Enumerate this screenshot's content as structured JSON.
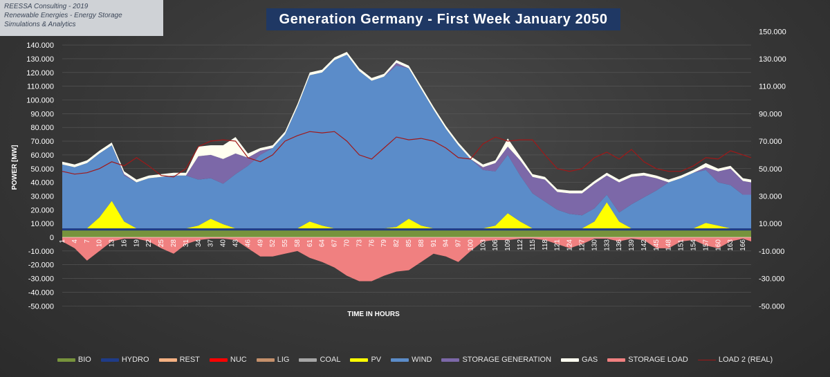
{
  "watermark": {
    "line1": "REESSA Consulting - 2019",
    "line2": "Renewable Energies  - Energy Storage",
    "line3": "Simulations & Analytics"
  },
  "legend": [
    {
      "label": "BIO",
      "color": "#77933c"
    },
    {
      "label": "HYDRO",
      "color": "#1f3c88"
    },
    {
      "label": "REST",
      "color": "#f4b183"
    },
    {
      "label": "NUC",
      "color": "#ff0000"
    },
    {
      "label": "LIG",
      "color": "#c5906b"
    },
    {
      "label": "COAL",
      "color": "#a6a6a6"
    },
    {
      "label": "PV",
      "color": "#ffff00"
    },
    {
      "label": "WIND",
      "color": "#5b8cc9"
    },
    {
      "label": "STORAGE GENERATION",
      "color": "#7c68a8"
    },
    {
      "label": "GAS",
      "color": "#fffff0"
    },
    {
      "label": "STORAGE LOAD",
      "color": "#f08080"
    },
    {
      "label": "LOAD 2 (REAL)",
      "color": "#a01818",
      "style": "line"
    }
  ],
  "chart_data": {
    "type": "area",
    "title": "Generation Germany - First Week January 2050",
    "xlabel": "TIME IN HOURS",
    "ylabel": "POWER [MW]",
    "ylim": [
      -50000,
      140000
    ],
    "y2lim": [
      -50000,
      150000
    ],
    "y_ticks": [
      "-50.000",
      "-40.000",
      "-30.000",
      "-20.000",
      "-10.000",
      "0",
      "10.000",
      "20.000",
      "30.000",
      "40.000",
      "50.000",
      "60.000",
      "70.000",
      "80.000",
      "90.000",
      "100.000",
      "110.000",
      "120.000",
      "130.000",
      "140.000"
    ],
    "y2_ticks": [
      "-50.000",
      "-30.000",
      "-10.000",
      "10.000",
      "30.000",
      "50.000",
      "70.000",
      "90.000",
      "110.000",
      "130.000",
      "150.000"
    ],
    "x_ticks": [
      "1",
      "4",
      "7",
      "10",
      "13",
      "16",
      "19",
      "22",
      "25",
      "28",
      "31",
      "34",
      "37",
      "40",
      "43",
      "46",
      "49",
      "52",
      "55",
      "58",
      "61",
      "64",
      "67",
      "70",
      "73",
      "76",
      "79",
      "82",
      "85",
      "88",
      "91",
      "94",
      "97",
      "100",
      "103",
      "106",
      "109",
      "112",
      "115",
      "118",
      "121",
      "124",
      "127",
      "130",
      "133",
      "136",
      "139",
      "142",
      "145",
      "148",
      "151",
      "154",
      "157",
      "160",
      "163",
      "166"
    ],
    "hours": [
      1,
      4,
      7,
      10,
      13,
      16,
      19,
      22,
      25,
      28,
      31,
      34,
      37,
      40,
      43,
      46,
      49,
      52,
      55,
      58,
      61,
      64,
      67,
      70,
      73,
      76,
      79,
      82,
      85,
      88,
      91,
      94,
      97,
      100,
      103,
      106,
      109,
      112,
      115,
      118,
      121,
      124,
      127,
      130,
      133,
      136,
      139,
      142,
      145,
      148,
      151,
      154,
      157,
      160,
      163,
      166,
      168
    ],
    "series": [
      {
        "name": "BIO",
        "values": [
          5000,
          5000,
          5000,
          5000,
          5000,
          5000,
          5000,
          5000,
          5000,
          5000,
          5000,
          5000,
          5000,
          5000,
          5000,
          5000,
          5000,
          5000,
          5000,
          5000,
          5000,
          5000,
          5000,
          5000,
          5000,
          5000,
          5000,
          5000,
          5000,
          5000,
          5000,
          5000,
          5000,
          5000,
          5000,
          5000,
          5000,
          5000,
          5000,
          5000,
          5000,
          5000,
          5000,
          5000,
          5000,
          5000,
          5000,
          5000,
          5000,
          5000,
          5000,
          5000,
          5000,
          5000,
          5000,
          5000,
          5000
        ]
      },
      {
        "name": "HYDRO",
        "values": [
          1500,
          1500,
          1500,
          1500,
          1500,
          1500,
          1500,
          1500,
          1500,
          1500,
          1500,
          1500,
          1500,
          1500,
          1500,
          1500,
          1500,
          1500,
          1500,
          1500,
          1500,
          1500,
          1500,
          1500,
          1500,
          1500,
          1500,
          1500,
          1500,
          1500,
          1500,
          1500,
          1500,
          1500,
          1500,
          1500,
          1500,
          1500,
          1500,
          1500,
          1500,
          1500,
          1500,
          1500,
          1500,
          1500,
          1500,
          1500,
          1500,
          1500,
          1500,
          1500,
          1500,
          1500,
          1500,
          1500,
          1500
        ]
      },
      {
        "name": "PV",
        "values": [
          0,
          0,
          0,
          8000,
          20000,
          5000,
          0,
          0,
          0,
          0,
          0,
          2000,
          7000,
          3000,
          0,
          0,
          0,
          0,
          0,
          0,
          5000,
          2000,
          0,
          0,
          0,
          0,
          0,
          1000,
          7000,
          2000,
          0,
          0,
          0,
          0,
          0,
          2000,
          11000,
          5000,
          0,
          0,
          0,
          0,
          0,
          5000,
          19000,
          5000,
          0,
          0,
          0,
          0,
          0,
          0,
          4000,
          2000,
          0,
          0,
          0
        ]
      },
      {
        "name": "WIND",
        "values": [
          46500,
          44500,
          47500,
          46500,
          40500,
          33500,
          33500,
          36500,
          37500,
          38500,
          38500,
          33500,
          29500,
          29500,
          39500,
          45500,
          53500,
          58500,
          68500,
          88500,
          106500,
          111500,
          122500,
          126500,
          114500,
          107500,
          110500,
          117500,
          109500,
          99500,
          86500,
          72500,
          60500,
          50500,
          42500,
          39500,
          42500,
          33500,
          25500,
          19500,
          13500,
          10500,
          9500,
          9500,
          5500,
          6500,
          17500,
          22500,
          27500,
          33500,
          36500,
          40500,
          38500,
          31500,
          31500,
          24500,
          24500
        ]
      },
      {
        "name": "STORAGE GENERATION",
        "values": [
          0,
          0,
          0,
          0,
          0,
          1000,
          0,
          0,
          0,
          0,
          0,
          17000,
          17000,
          18000,
          15000,
          6000,
          3000,
          0,
          0,
          0,
          0,
          0,
          0,
          0,
          0,
          0,
          0,
          2000,
          0,
          0,
          0,
          0,
          0,
          0,
          2000,
          6000,
          6000,
          11000,
          12000,
          16000,
          13000,
          15000,
          16000,
          18000,
          14000,
          22000,
          20000,
          16000,
          9000,
          0,
          0,
          0,
          2000,
          8000,
          12000,
          10000,
          9000
        ]
      },
      {
        "name": "GAS",
        "values": [
          2000,
          2000,
          2000,
          2000,
          2000,
          2000,
          2000,
          2000,
          2000,
          2000,
          2000,
          7000,
          7000,
          10000,
          12000,
          3000,
          2000,
          2000,
          2000,
          2000,
          2000,
          2000,
          2000,
          2000,
          2000,
          2000,
          2000,
          2000,
          2000,
          2000,
          2000,
          2000,
          2000,
          2000,
          2000,
          2000,
          6000,
          3000,
          2000,
          2000,
          2000,
          2000,
          2000,
          2000,
          2000,
          2000,
          2000,
          2000,
          2000,
          2000,
          2000,
          2000,
          3000,
          2000,
          2000,
          2000,
          2000
        ]
      },
      {
        "name": "STORAGE LOAD",
        "values": [
          -3000,
          -8000,
          -17000,
          -10000,
          -3000,
          -1000,
          -1000,
          -3000,
          -8000,
          -12000,
          -5000,
          -2000,
          -1000,
          -1000,
          -2000,
          -8000,
          -14000,
          -14000,
          -12000,
          -10000,
          -15000,
          -18000,
          -22000,
          -28000,
          -32000,
          -32000,
          -28000,
          -25000,
          -24000,
          -18000,
          -12000,
          -14000,
          -18000,
          -10000,
          -3000,
          -2000,
          -2000,
          -1000,
          -1000,
          -2000,
          -5000,
          -8000,
          -5000,
          -1000,
          -1000,
          -3000,
          -1000,
          -2000,
          -8000,
          -8000,
          -3000,
          -2000,
          -6000,
          -8000,
          -3000,
          -1000,
          -3000
        ]
      },
      {
        "name": "LOAD 2 (REAL)",
        "values": [
          48000,
          46000,
          47000,
          50000,
          55000,
          52000,
          58000,
          52000,
          45000,
          44000,
          50000,
          66000,
          70000,
          71000,
          70000,
          58000,
          55000,
          60000,
          70000,
          74000,
          77000,
          76000,
          77000,
          70000,
          60000,
          57000,
          65000,
          73000,
          71000,
          72000,
          70000,
          65000,
          58000,
          57000,
          68000,
          73000,
          70000,
          71000,
          71000,
          60000,
          50000,
          48000,
          50000,
          58000,
          62000,
          57000,
          64000,
          55000,
          50000,
          48000,
          48000,
          52000,
          58000,
          57000,
          63000,
          60000,
          58000
        ]
      }
    ]
  }
}
